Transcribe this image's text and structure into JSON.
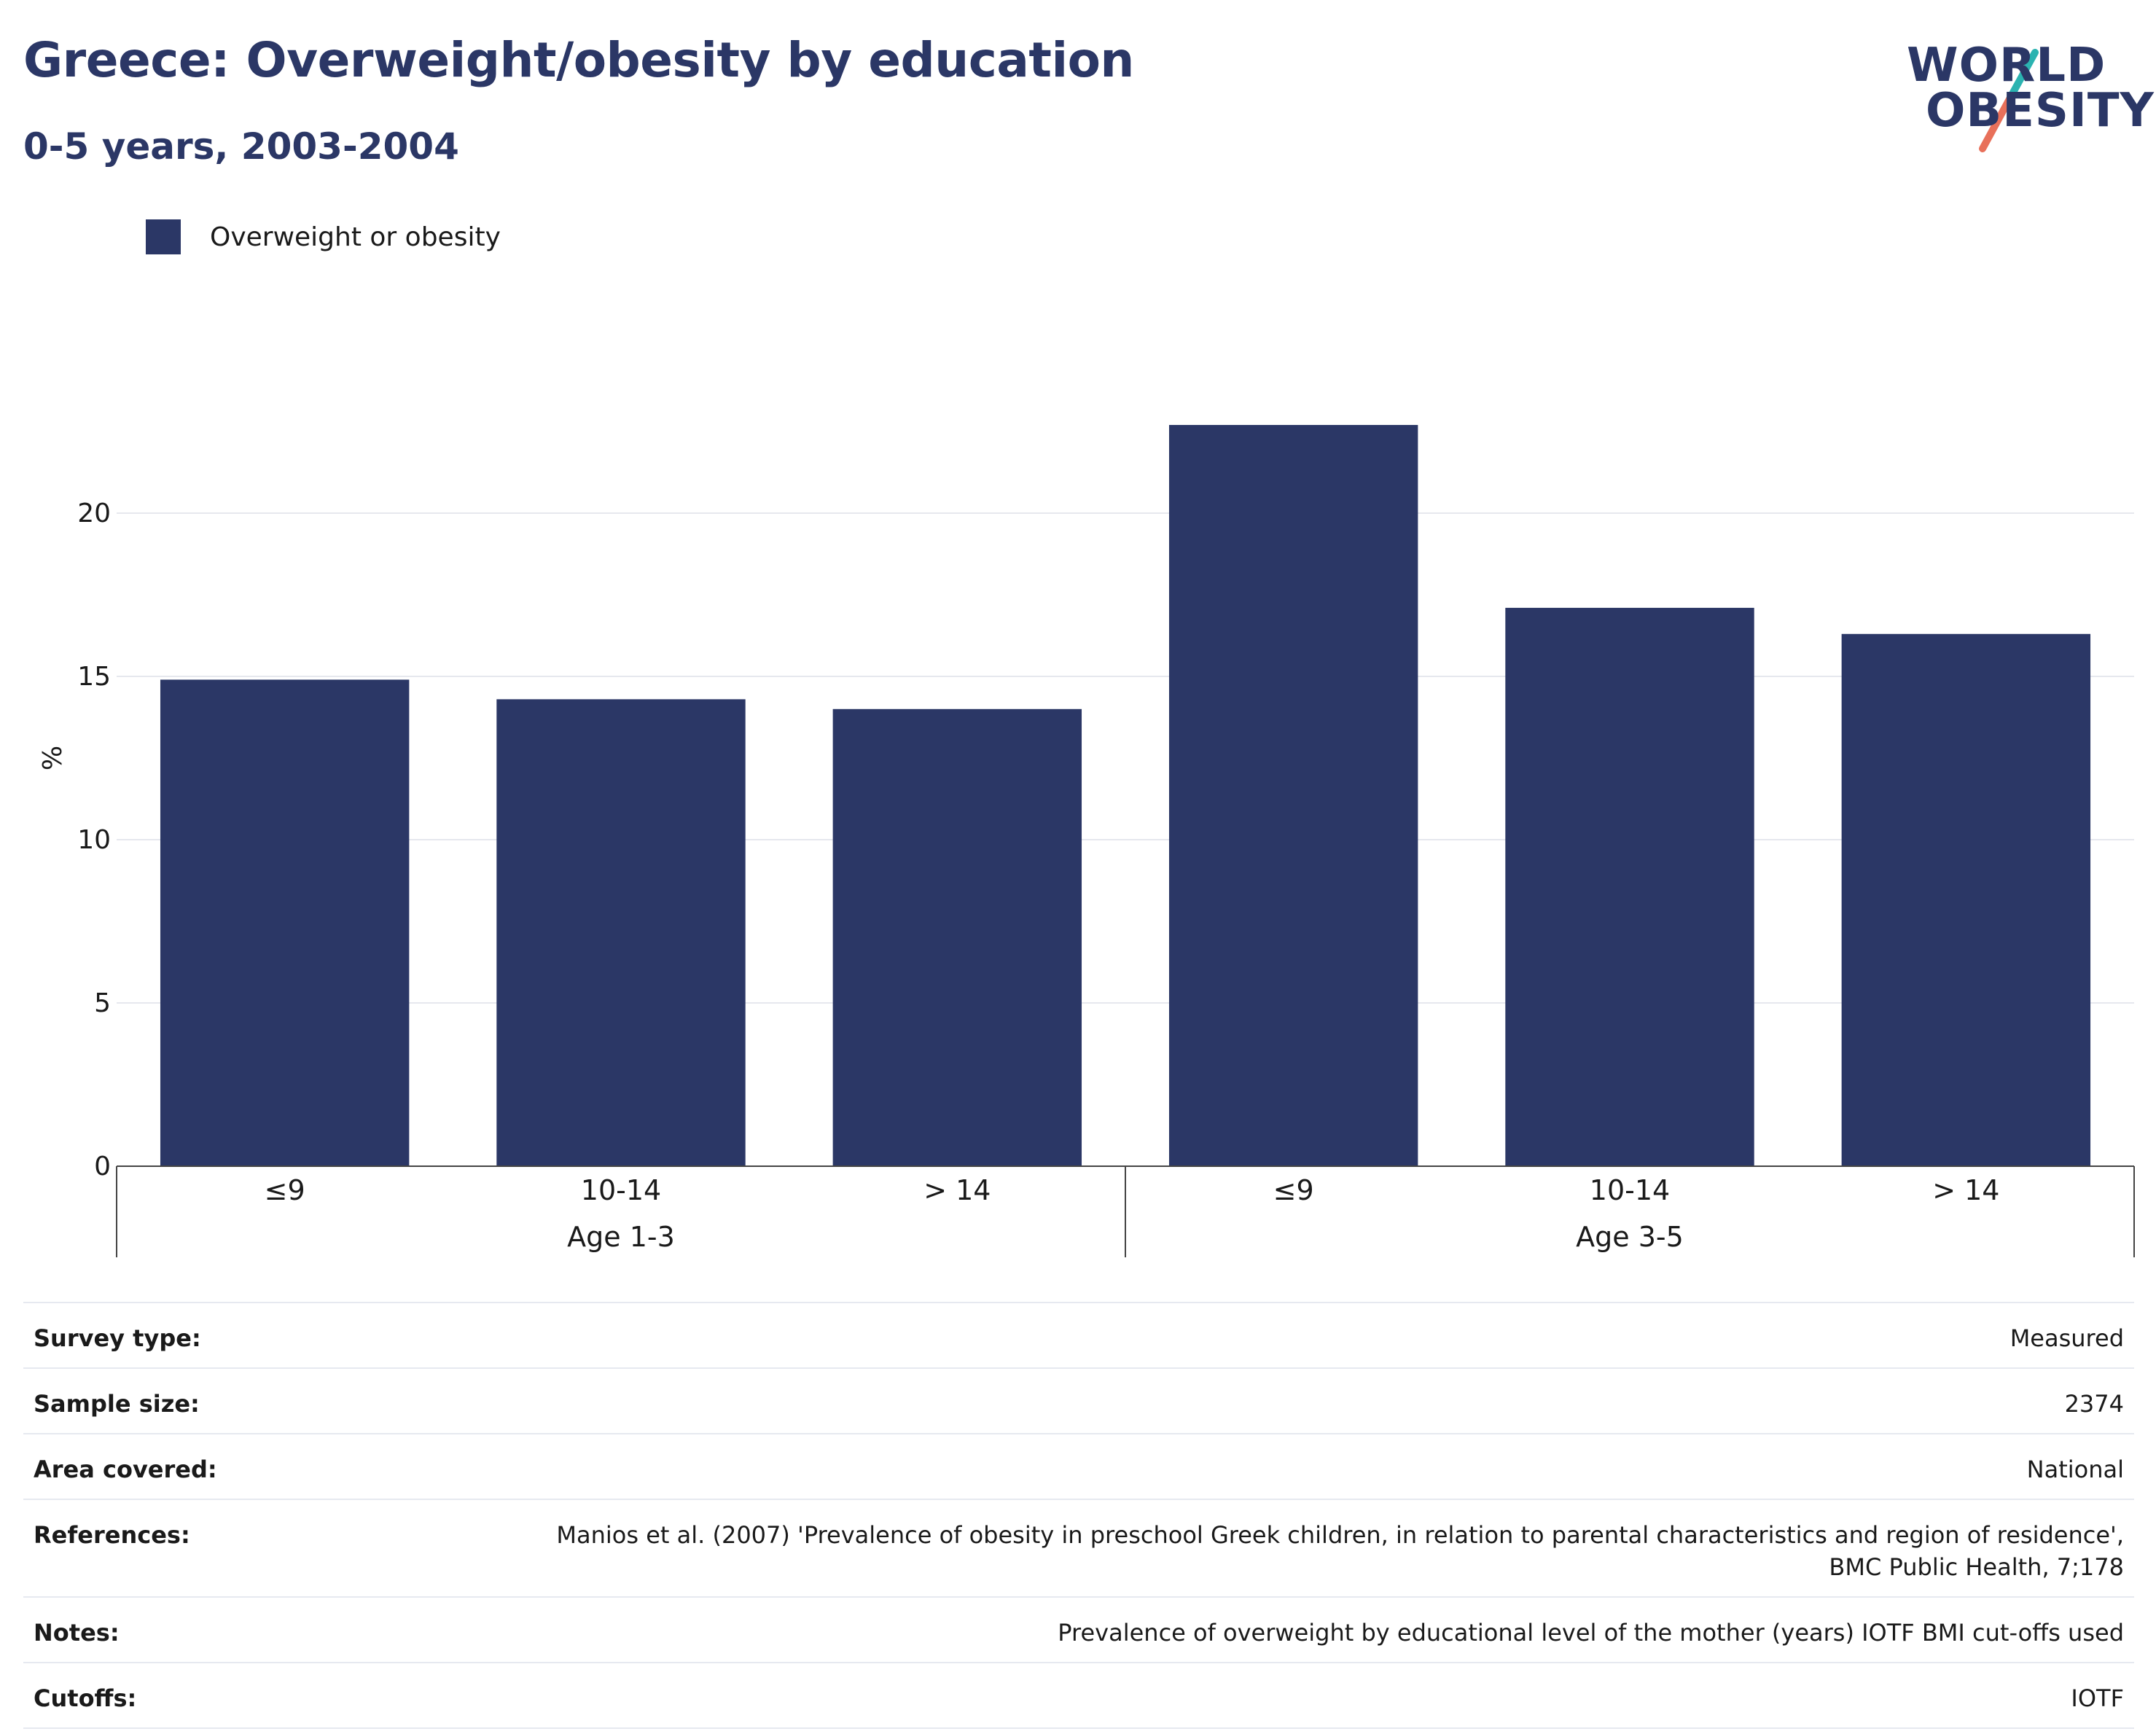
{
  "title": "Greece: Overweight/obesity by education",
  "subtitle": "0-5 years, 2003-2004",
  "logo": {
    "line1": "WORLD",
    "line2": "OBESITY",
    "accent_teal": "#2bb3b1",
    "accent_coral": "#e8705a"
  },
  "legend": {
    "label": "Overweight or obesity",
    "color": "#2b3766"
  },
  "chart_data": {
    "type": "bar",
    "ylabel": "%",
    "ylim": [
      0,
      25
    ],
    "yticks": [
      0,
      5,
      10,
      15,
      20
    ],
    "grid": true,
    "legend_position": "top-left",
    "bar_color": "#2b3766",
    "groups": [
      {
        "label": "Age 1-3",
        "categories": [
          "≤9",
          "10-14",
          "> 14"
        ],
        "values": [
          14.9,
          14.3,
          14.0
        ]
      },
      {
        "label": "Age 3-5",
        "categories": [
          "≤9",
          "10-14",
          "> 14"
        ],
        "values": [
          22.7,
          17.1,
          16.3
        ]
      }
    ],
    "series": [
      {
        "name": "Overweight or obesity"
      }
    ]
  },
  "meta": [
    {
      "label": "Survey type:",
      "value": "Measured"
    },
    {
      "label": "Sample size:",
      "value": "2374"
    },
    {
      "label": "Area covered:",
      "value": "National"
    },
    {
      "label": "References:",
      "value": "Manios et al. (2007) 'Prevalence of obesity in preschool Greek children, in relation to parental characteristics and region of residence',\nBMC Public Health, 7;178"
    },
    {
      "label": "Notes:",
      "value": "Prevalence of overweight by educational level of the mother (years) IOTF BMI cut-offs used"
    },
    {
      "label": "Cutoffs:",
      "value": "IOTF"
    }
  ]
}
